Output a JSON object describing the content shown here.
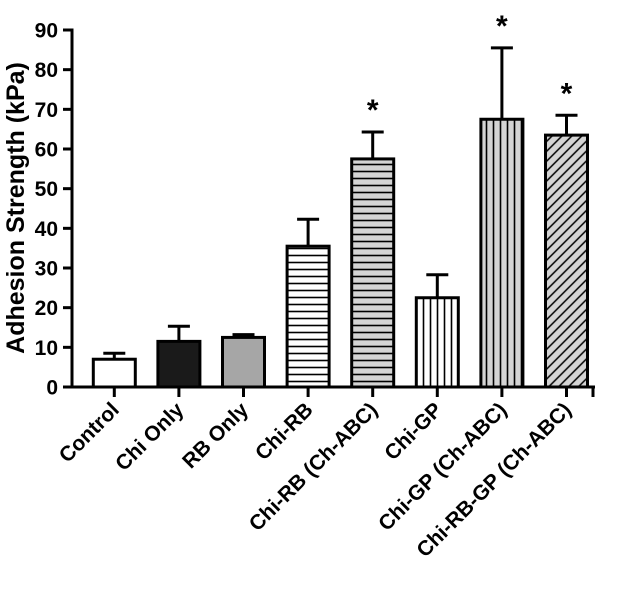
{
  "chart_data": {
    "type": "bar",
    "title": "",
    "xlabel": "",
    "ylabel": "Adhesion Strength (kPa)",
    "ylim": [
      0,
      90
    ],
    "yticks": [
      0,
      10,
      20,
      30,
      40,
      50,
      60,
      70,
      80,
      90
    ],
    "grid": false,
    "categories": [
      "Control",
      "Chi Only",
      "RB Only",
      "Chi-RB",
      "Chi-RB (Ch-ABC)",
      "Chi-GP",
      "Chi-GP (Ch-ABC)",
      "Chi-RB-GP (Ch-ABC)"
    ],
    "values": [
      7,
      11.5,
      12.5,
      35.5,
      57.5,
      22.5,
      67.5,
      63.5
    ],
    "errors": [
      1.5,
      3.8,
      0.7,
      6.8,
      6.8,
      5.8,
      18,
      5
    ],
    "annotations": [
      "",
      "",
      "",
      "",
      "*",
      "",
      "*",
      "*"
    ],
    "fills": [
      "white",
      "black",
      "gray",
      "horizontal-lines",
      "horizontal-lines-gray",
      "vertical-lines",
      "vertical-lines-gray",
      "diagonal-lines-gray"
    ],
    "colors": {
      "black": "#1a1a1a",
      "gray": "#a6a6a6",
      "light_gray": "#d4d4d4"
    }
  }
}
